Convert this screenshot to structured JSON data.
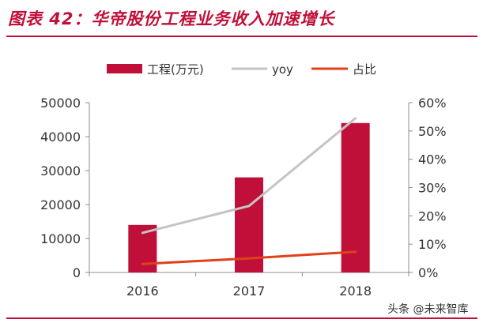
{
  "title": "图表 42：华帝股份工程业务收入加速增长",
  "watermark": "头条 @未来智库",
  "colors": {
    "accent": "#c0103a",
    "bar": "#c0103a",
    "yoy_line": "#c4c4c4",
    "share_line": "#e0401a",
    "axis": "#8c8c8c",
    "text": "#333333"
  },
  "chart_data": {
    "type": "bar",
    "title": "",
    "categories": [
      "2016",
      "2017",
      "2018"
    ],
    "series": [
      {
        "name": "工程(万元)",
        "type": "bar",
        "axis": "left",
        "values": [
          14000,
          28000,
          44000
        ]
      },
      {
        "name": "yoy",
        "type": "line",
        "axis": "right",
        "values": [
          0.14,
          0.235,
          0.545
        ]
      },
      {
        "name": "占比",
        "type": "line",
        "axis": "right",
        "values": [
          0.03,
          0.05,
          0.073
        ]
      }
    ],
    "y_left": {
      "ylim": [
        0,
        50000
      ],
      "ticks": [
        0,
        10000,
        20000,
        30000,
        40000,
        50000
      ],
      "tick_labels": [
        "0",
        "10000",
        "20000",
        "30000",
        "40000",
        "50000"
      ]
    },
    "y_right": {
      "ylim": [
        0,
        0.6
      ],
      "ticks": [
        0,
        0.1,
        0.2,
        0.3,
        0.4,
        0.5,
        0.6
      ],
      "tick_labels": [
        "0%",
        "10%",
        "20%",
        "30%",
        "40%",
        "50%",
        "60%"
      ]
    },
    "xlabel": "",
    "ylabel": "",
    "legend": {
      "position": "top",
      "labels": [
        "工程(万元)",
        "yoy",
        "占比"
      ]
    },
    "grid": false
  }
}
